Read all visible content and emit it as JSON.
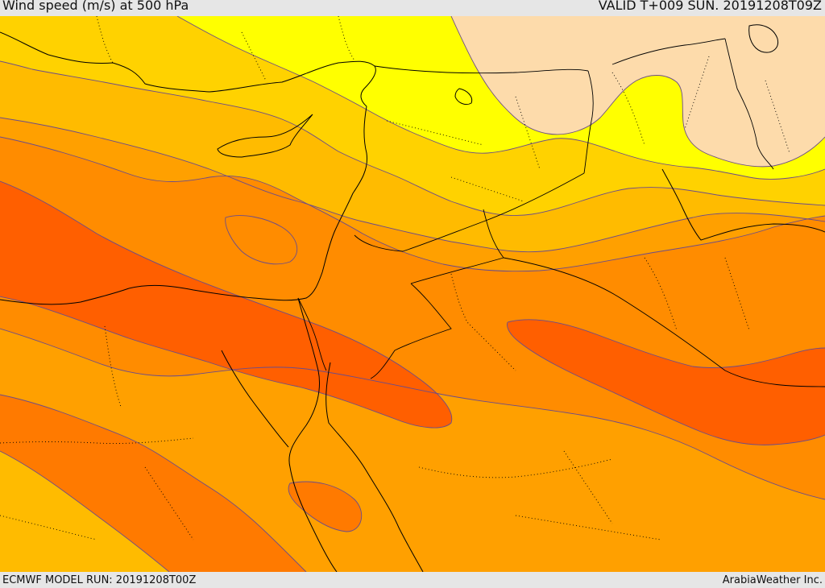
{
  "header": {
    "title": "Wind speed (m/s) at 500 hPa",
    "valid_time": "VALID T+009 SUN. 20191208T09Z"
  },
  "footer": {
    "model_run": "ECMWF MODEL RUN: 20191208T00Z",
    "brand": "ArabiaWeather Inc."
  },
  "map": {
    "colors": {
      "background": "#ffa000",
      "band_very_light": "#fddbab",
      "band_yellow": "#ffff00",
      "band_gold": "#ffd200",
      "band_amber": "#ffbb00",
      "band_orange": "#ff8c00",
      "band_deep_orange": "#ff7a00",
      "band_red_orange": "#ff5f00",
      "contour": "#6b4c8a",
      "coastline": "#000000",
      "border": "#000000"
    }
  }
}
